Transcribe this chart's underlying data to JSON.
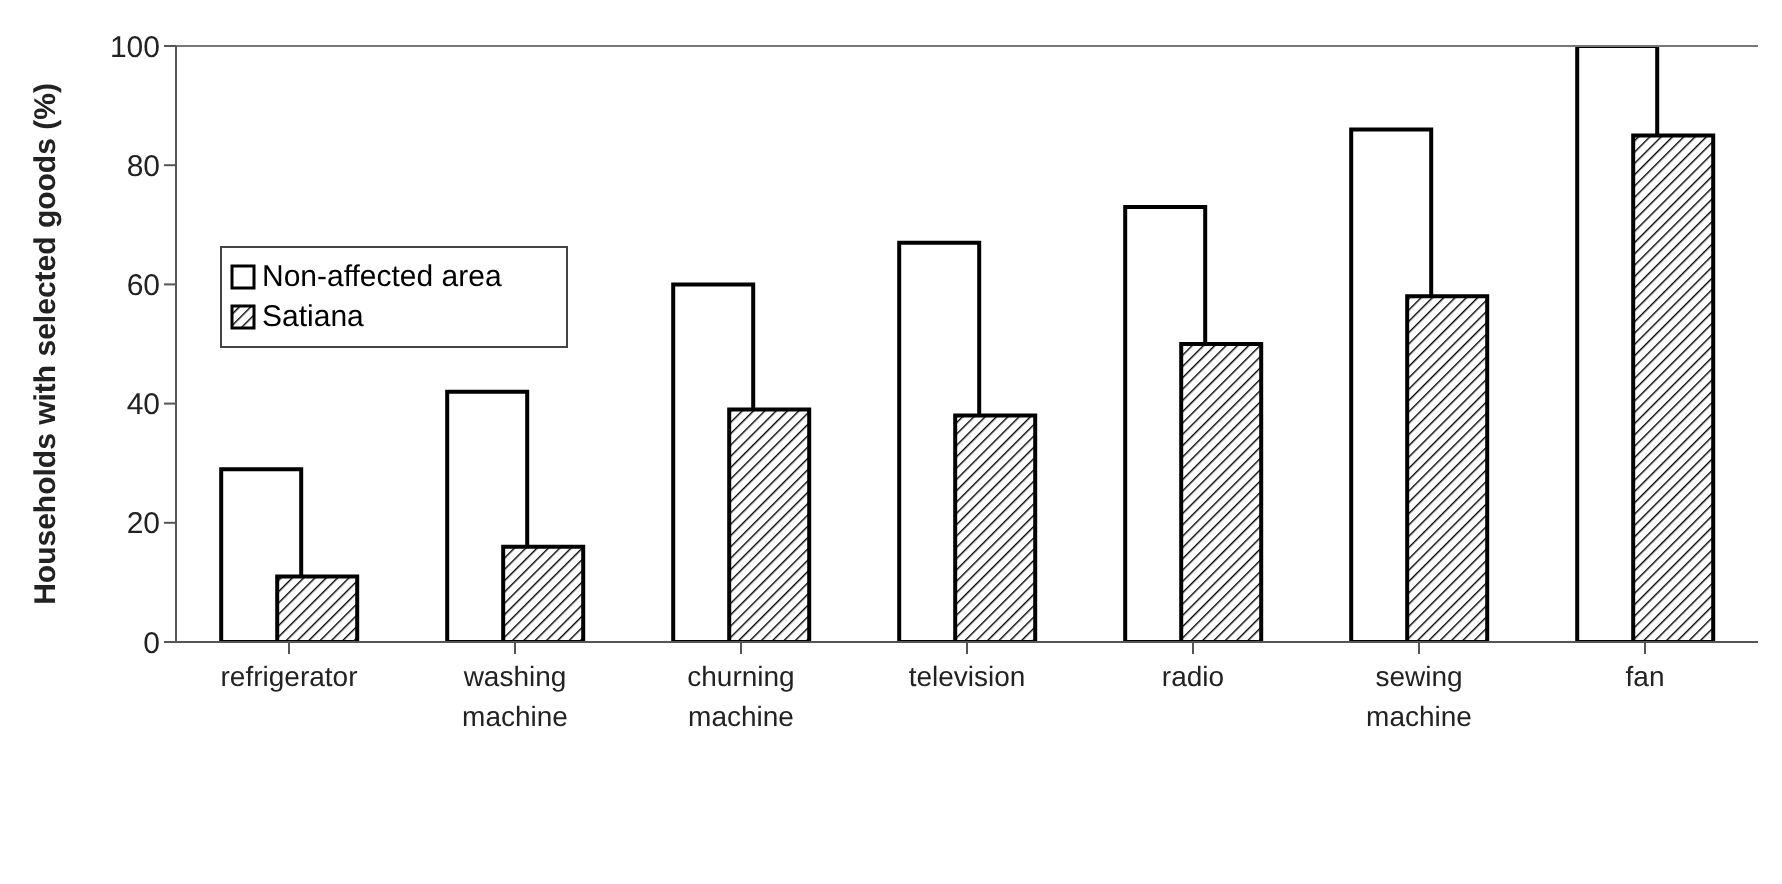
{
  "chart_data": {
    "type": "bar",
    "ylabel": "Households with selected goods (%)",
    "categories": [
      "refrigerator",
      "washing machine",
      "churning machine",
      "television",
      "radio",
      "sewing machine",
      "fan"
    ],
    "series": [
      {
        "name": "Non-affected area",
        "color": "#ffffff",
        "values": [
          29,
          42,
          60,
          67,
          73,
          86,
          100
        ]
      },
      {
        "name": "Satiana",
        "color": "#000000",
        "values": [
          11,
          16,
          39,
          38,
          50,
          58,
          85
        ]
      }
    ],
    "ylim": [
      0,
      100
    ],
    "yticks": [
      0,
      20,
      40,
      60,
      80,
      100
    ],
    "legend": "top left"
  }
}
